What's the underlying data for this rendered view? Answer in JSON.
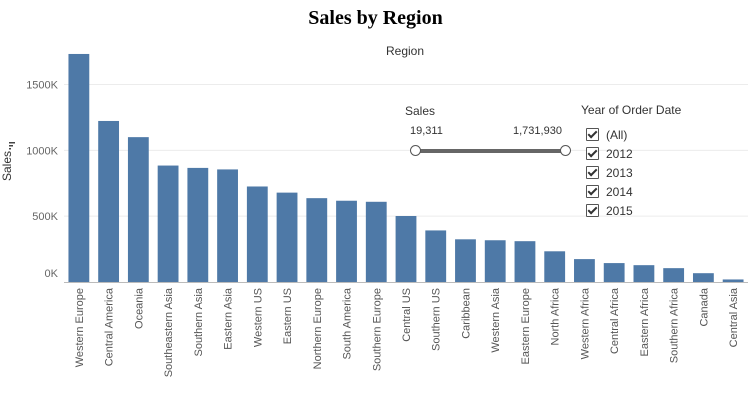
{
  "title": "Sales by Region",
  "column_header": "Region",
  "filter": {
    "title": "Sales",
    "min_label": "19,311",
    "max_label": "1,731,930",
    "min": 19311,
    "max": 1731930
  },
  "legend": {
    "title": "Year of Order Date",
    "items": [
      "(All)",
      "2012",
      "2013",
      "2014",
      "2015"
    ]
  },
  "colors": {
    "bar": "#4e79a7",
    "grid": "#ececec",
    "axis": "#bbbbbb"
  },
  "chart_data": {
    "type": "bar",
    "title": "Sales by Region",
    "xlabel": "Region",
    "ylabel": "Sales",
    "ylim": [
      0,
      1800000
    ],
    "grid": true,
    "yticks": [
      0,
      500000,
      1000000,
      1500000
    ],
    "ytick_labels": [
      "0K",
      "500K",
      "1000K",
      "1500K"
    ],
    "categories": [
      "Western Europe",
      "Central America",
      "Oceania",
      "Southeastern Asia",
      "Southern Asia",
      "Eastern Asia",
      "Western US",
      "Eastern US",
      "Northern Europe",
      "South America",
      "Southern Europe",
      "Central US",
      "Southern US",
      "Caribbean",
      "Western Asia",
      "Eastern Europe",
      "North Africa",
      "Western Africa",
      "Central Africa",
      "Eastern Africa",
      "Southern Africa",
      "Canada",
      "Central Asia"
    ],
    "values": [
      1731930,
      1223100,
      1100185,
      884423,
      866573,
      855059,
      725458,
      678781,
      636778,
      617224,
      609201,
      501239,
      391722,
      324281,
      317106,
      310033,
      233216,
      173879,
      143631,
      127856,
      105191,
      66928,
      19311
    ]
  }
}
